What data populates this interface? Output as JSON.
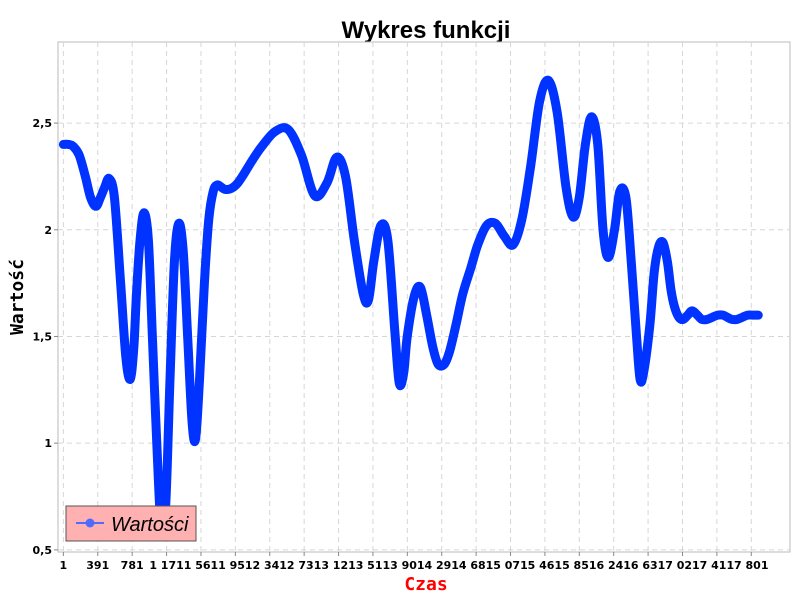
{
  "chart_data": {
    "type": "line",
    "title": "Wykres funkcji",
    "xlabel": "Czas",
    "ylabel": "Wartość",
    "x_tick_labels": [
      "1",
      "391",
      "781",
      "1 171",
      "1 561",
      "1 951",
      "2 341",
      "2 731",
      "3 121",
      "3 511",
      "3 901",
      "4 291",
      "4 681",
      "5 071",
      "5 461",
      "5 851",
      "6 241",
      "6 631",
      "7 021",
      "7 411",
      "7 801"
    ],
    "y_tick_labels": [
      "0,5",
      "1",
      "1,5",
      "2",
      "2,5"
    ],
    "y_ticks": [
      0.5,
      1,
      1.5,
      2,
      2.5
    ],
    "xlim": [
      -60,
      8240
    ],
    "ylim": [
      0.49,
      2.88
    ],
    "grid": true,
    "legend_position": "bottom-left",
    "series": [
      {
        "name": "Wartości",
        "color": "#0033ff",
        "x": [
          1,
          60,
          115,
          180,
          250,
          310,
          370,
          420,
          470,
          520,
          580,
          650,
          710,
          760,
          800,
          830,
          870,
          915,
          965,
          1010,
          1060,
          1110,
          1160,
          1210,
          1260,
          1310,
          1360,
          1410,
          1460,
          1500,
          1545,
          1600,
          1650,
          1700,
          1745,
          1790,
          1830,
          1880,
          1930,
          1980,
          2030,
          2090,
          2150,
          2250,
          2400,
          2550,
          2700,
          2850,
          2990,
          3100,
          3200,
          3300,
          3400,
          3460,
          3520,
          3600,
          3680,
          3760,
          3810,
          3860,
          3900,
          3980,
          4050,
          4120,
          4190,
          4250,
          4320,
          4380,
          4450,
          4530,
          4620,
          4700,
          4800,
          4900,
          5000,
          5100,
          5200,
          5300,
          5400,
          5500,
          5600,
          5700,
          5780,
          5850,
          5920,
          5990,
          6060,
          6120,
          6180,
          6250,
          6310,
          6380,
          6440,
          6500,
          6540,
          6580,
          6650,
          6700,
          6750,
          6800,
          6850,
          6890,
          6930,
          6980,
          7030,
          7080,
          7130,
          7190,
          7240,
          7300,
          7360,
          7420,
          7480,
          7530,
          7580,
          7640,
          7700,
          7760,
          7820,
          7880
        ],
        "y": [
          2.4,
          2.4,
          2.39,
          2.35,
          2.25,
          2.15,
          2.11,
          2.15,
          2.2,
          2.24,
          2.15,
          1.75,
          1.4,
          1.3,
          1.45,
          1.7,
          1.95,
          2.08,
          1.95,
          1.5,
          1.0,
          0.6,
          0.7,
          1.3,
          1.85,
          2.03,
          1.9,
          1.5,
          1.1,
          1.02,
          1.3,
          1.75,
          2.05,
          2.18,
          2.21,
          2.2,
          2.19,
          2.19,
          2.2,
          2.22,
          2.25,
          2.29,
          2.33,
          2.39,
          2.46,
          2.47,
          2.35,
          2.16,
          2.22,
          2.34,
          2.25,
          1.95,
          1.7,
          1.67,
          1.85,
          2.02,
          1.95,
          1.52,
          1.28,
          1.33,
          1.5,
          1.69,
          1.73,
          1.6,
          1.45,
          1.37,
          1.37,
          1.43,
          1.55,
          1.7,
          1.82,
          1.93,
          2.02,
          2.03,
          1.97,
          1.93,
          2.05,
          2.3,
          2.6,
          2.7,
          2.55,
          2.2,
          2.06,
          2.15,
          2.4,
          2.53,
          2.4,
          2.0,
          1.87,
          2.0,
          2.18,
          2.15,
          1.85,
          1.5,
          1.3,
          1.33,
          1.55,
          1.8,
          1.92,
          1.94,
          1.85,
          1.72,
          1.64,
          1.59,
          1.58,
          1.6,
          1.62,
          1.6,
          1.58,
          1.58,
          1.59,
          1.6,
          1.6,
          1.59,
          1.58,
          1.58,
          1.59,
          1.6,
          1.6,
          1.6
        ]
      }
    ]
  }
}
